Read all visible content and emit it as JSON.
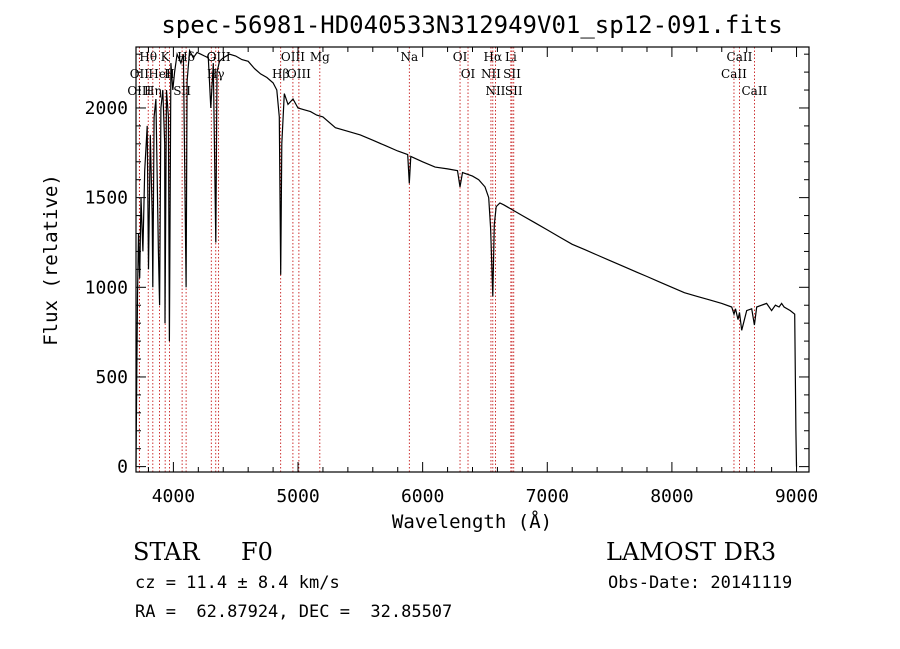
{
  "chart_data": {
    "type": "line",
    "title": "spec-56981-HD040533N312949V01_sp12-091.fits",
    "xlabel": "Wavelength (Å)",
    "ylabel": "Flux (relative)",
    "xlim": [
      3700,
      9100
    ],
    "ylim": [
      -30,
      2340
    ],
    "xticks": [
      4000,
      5000,
      6000,
      7000,
      8000,
      9000
    ],
    "xtick_labels": [
      "4000",
      "5000",
      "6000",
      "7000",
      "8000",
      "9000"
    ],
    "yticks": [
      0,
      500,
      1000,
      1500,
      2000
    ],
    "ytick_labels": [
      "0",
      "500",
      "1000",
      "1500",
      "2000"
    ],
    "grid": false,
    "series": [
      {
        "name": "flux",
        "x": [
          3700,
          3705,
          3712,
          3720,
          3730,
          3740,
          3755,
          3770,
          3790,
          3800,
          3815,
          3830,
          3835,
          3845,
          3860,
          3880,
          3889,
          3900,
          3915,
          3930,
          3933,
          3945,
          3960,
          3968,
          3980,
          3995,
          4010,
          4030,
          4060,
          4080,
          4102,
          4110,
          4130,
          4160,
          4190,
          4220,
          4250,
          4280,
          4300,
          4320,
          4340,
          4350,
          4370,
          4400,
          4450,
          4500,
          4550,
          4600,
          4650,
          4700,
          4750,
          4800,
          4830,
          4850,
          4861,
          4870,
          4890,
          4920,
          4960,
          5000,
          5050,
          5100,
          5150,
          5200,
          5300,
          5400,
          5500,
          5600,
          5700,
          5800,
          5880,
          5893,
          5905,
          6000,
          6100,
          6200,
          6280,
          6300,
          6320,
          6400,
          6450,
          6500,
          6530,
          6545,
          6563,
          6575,
          6590,
          6620,
          6650,
          6700,
          6800,
          6900,
          7000,
          7100,
          7200,
          7300,
          7400,
          7500,
          7600,
          7700,
          7800,
          7900,
          8000,
          8100,
          8200,
          8300,
          8400,
          8480,
          8498,
          8510,
          8530,
          8542,
          8560,
          8600,
          8640,
          8662,
          8680,
          8720,
          8760,
          8800,
          8830,
          8860,
          8880,
          8900,
          8950,
          8985,
          8995,
          9000
        ],
        "y": [
          0,
          400,
          950,
          1300,
          1050,
          1500,
          1200,
          1650,
          1900,
          1100,
          1850,
          1400,
          1000,
          1950,
          2050,
          1200,
          900,
          2000,
          2100,
          1800,
          800,
          2100,
          1950,
          700,
          2250,
          2100,
          2200,
          2300,
          2250,
          2300,
          1000,
          2150,
          2320,
          2280,
          2310,
          2300,
          2290,
          2280,
          2000,
          2250,
          1250,
          2200,
          2260,
          2280,
          2300,
          2290,
          2270,
          2260,
          2220,
          2190,
          2170,
          2140,
          2100,
          1950,
          1070,
          1800,
          2080,
          2020,
          2050,
          2000,
          1990,
          1980,
          1960,
          1950,
          1890,
          1870,
          1850,
          1820,
          1790,
          1760,
          1740,
          1580,
          1730,
          1700,
          1670,
          1660,
          1650,
          1560,
          1640,
          1620,
          1600,
          1560,
          1500,
          1330,
          950,
          1350,
          1450,
          1470,
          1460,
          1440,
          1400,
          1360,
          1320,
          1280,
          1240,
          1210,
          1180,
          1150,
          1120,
          1090,
          1060,
          1030,
          1000,
          970,
          950,
          930,
          910,
          890,
          850,
          880,
          820,
          860,
          760,
          870,
          880,
          790,
          890,
          900,
          910,
          870,
          900,
          890,
          910,
          890,
          870,
          850,
          200,
          0
        ]
      }
    ],
    "lines": [
      {
        "label": "Hθ",
        "wavelength": 3798
      },
      {
        "label": "OII",
        "wavelength": 3727
      },
      {
        "label": "OIII",
        "wavelength": 3727
      },
      {
        "label": "K",
        "wavelength": 3934
      },
      {
        "label": "HeI",
        "wavelength": 3889
      },
      {
        "label": "Hη",
        "wavelength": 3835
      },
      {
        "label": "H",
        "wavelength": 3969
      },
      {
        "label": "Hδ",
        "wavelength": 4102
      },
      {
        "label": "SII",
        "wavelength": 4070
      },
      {
        "label": "OIII",
        "wavelength": 4363
      },
      {
        "label": "OIII",
        "wavelength": 4959
      },
      {
        "label": "OIII",
        "wavelength": 5007
      },
      {
        "label": "Hγ",
        "wavelength": 4340
      },
      {
        "label": "G",
        "wavelength": 4304
      },
      {
        "label": "Hβ",
        "wavelength": 4861
      },
      {
        "label": "Mg",
        "wavelength": 5175
      },
      {
        "label": "Na",
        "wavelength": 5893
      },
      {
        "label": "OI",
        "wavelength": 6300
      },
      {
        "label": "OI",
        "wavelength": 6364
      },
      {
        "label": "Hα",
        "wavelength": 6563
      },
      {
        "label": "NII",
        "wavelength": 6548
      },
      {
        "label": "NII",
        "wavelength": 6584
      },
      {
        "label": "SII",
        "wavelength": 6717
      },
      {
        "label": "Li",
        "wavelength": 6708
      },
      {
        "label": "SII",
        "wavelength": 6731
      },
      {
        "label": "CaII",
        "wavelength": 8542
      },
      {
        "label": "CaII",
        "wavelength": 8498
      },
      {
        "label": "CaII",
        "wavelength": 8662
      }
    ],
    "line_color": "#c00000"
  },
  "info": {
    "object_class": "STAR",
    "subclass": "F0",
    "survey": "LAMOST DR3",
    "cz": "cz = 11.4 ± 8.4 km/s",
    "obs_date": "Obs-Date: 20141119",
    "coords": "RA =  62.87924, DEC =  32.85507"
  }
}
